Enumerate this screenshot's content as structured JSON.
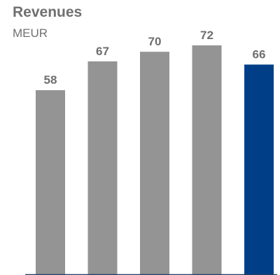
{
  "chart_data": {
    "type": "bar",
    "title": "Revenues",
    "subtitle": "MEUR",
    "categories": [
      "",
      "",
      "",
      "",
      ""
    ],
    "values": [
      58,
      67,
      70,
      72,
      66
    ],
    "data_labels": [
      "58",
      "67",
      "70",
      "72",
      "66"
    ],
    "bar_colors": [
      "#949494",
      "#949494",
      "#949494",
      "#949494",
      "#003f87"
    ],
    "axis_color": "#1f3f66",
    "ylim": [
      0,
      72
    ],
    "grid": false,
    "legend": "none"
  }
}
